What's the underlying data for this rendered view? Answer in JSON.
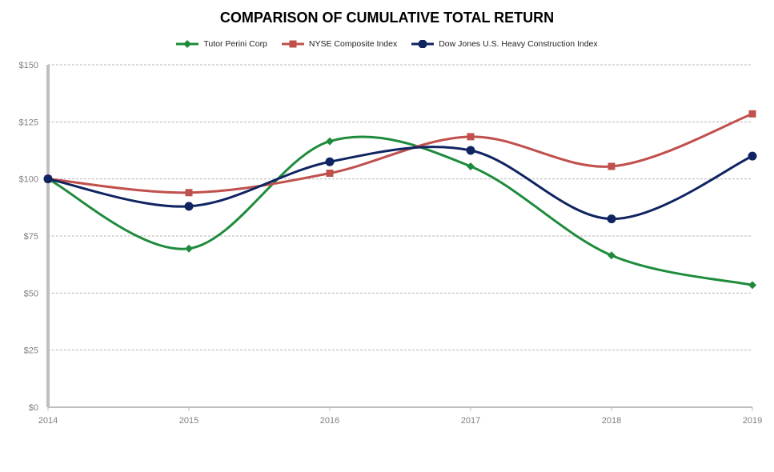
{
  "chart_data": {
    "type": "line",
    "title": "COMPARISON OF CUMULATIVE TOTAL RETURN",
    "x": [
      "2014",
      "2015",
      "2016",
      "2017",
      "2018",
      "2019"
    ],
    "y_ticks": [
      "$0",
      "$25",
      "$50",
      "$75",
      "$100",
      "$125",
      "$150"
    ],
    "y_tick_values": [
      0,
      25,
      50,
      75,
      100,
      125,
      150
    ],
    "ylim": [
      0,
      150
    ],
    "grid": true,
    "legend_position": "top",
    "series": [
      {
        "name": "Tutor Perini Corp",
        "color": "#1e8b3c",
        "marker": "diamond",
        "values": [
          100,
          69.5,
          116.5,
          105.5,
          66.5,
          53.5
        ]
      },
      {
        "name": "NYSE Composite Index",
        "color": "#c0504d",
        "marker": "square",
        "values": [
          100,
          94,
          102.5,
          118.5,
          105.5,
          128.5
        ]
      },
      {
        "name": "Dow Jones U.S. Heavy Construction Index",
        "color": "#0f2461",
        "marker": "circle",
        "values": [
          100,
          88,
          107.5,
          112.5,
          82.5,
          110
        ]
      }
    ]
  }
}
